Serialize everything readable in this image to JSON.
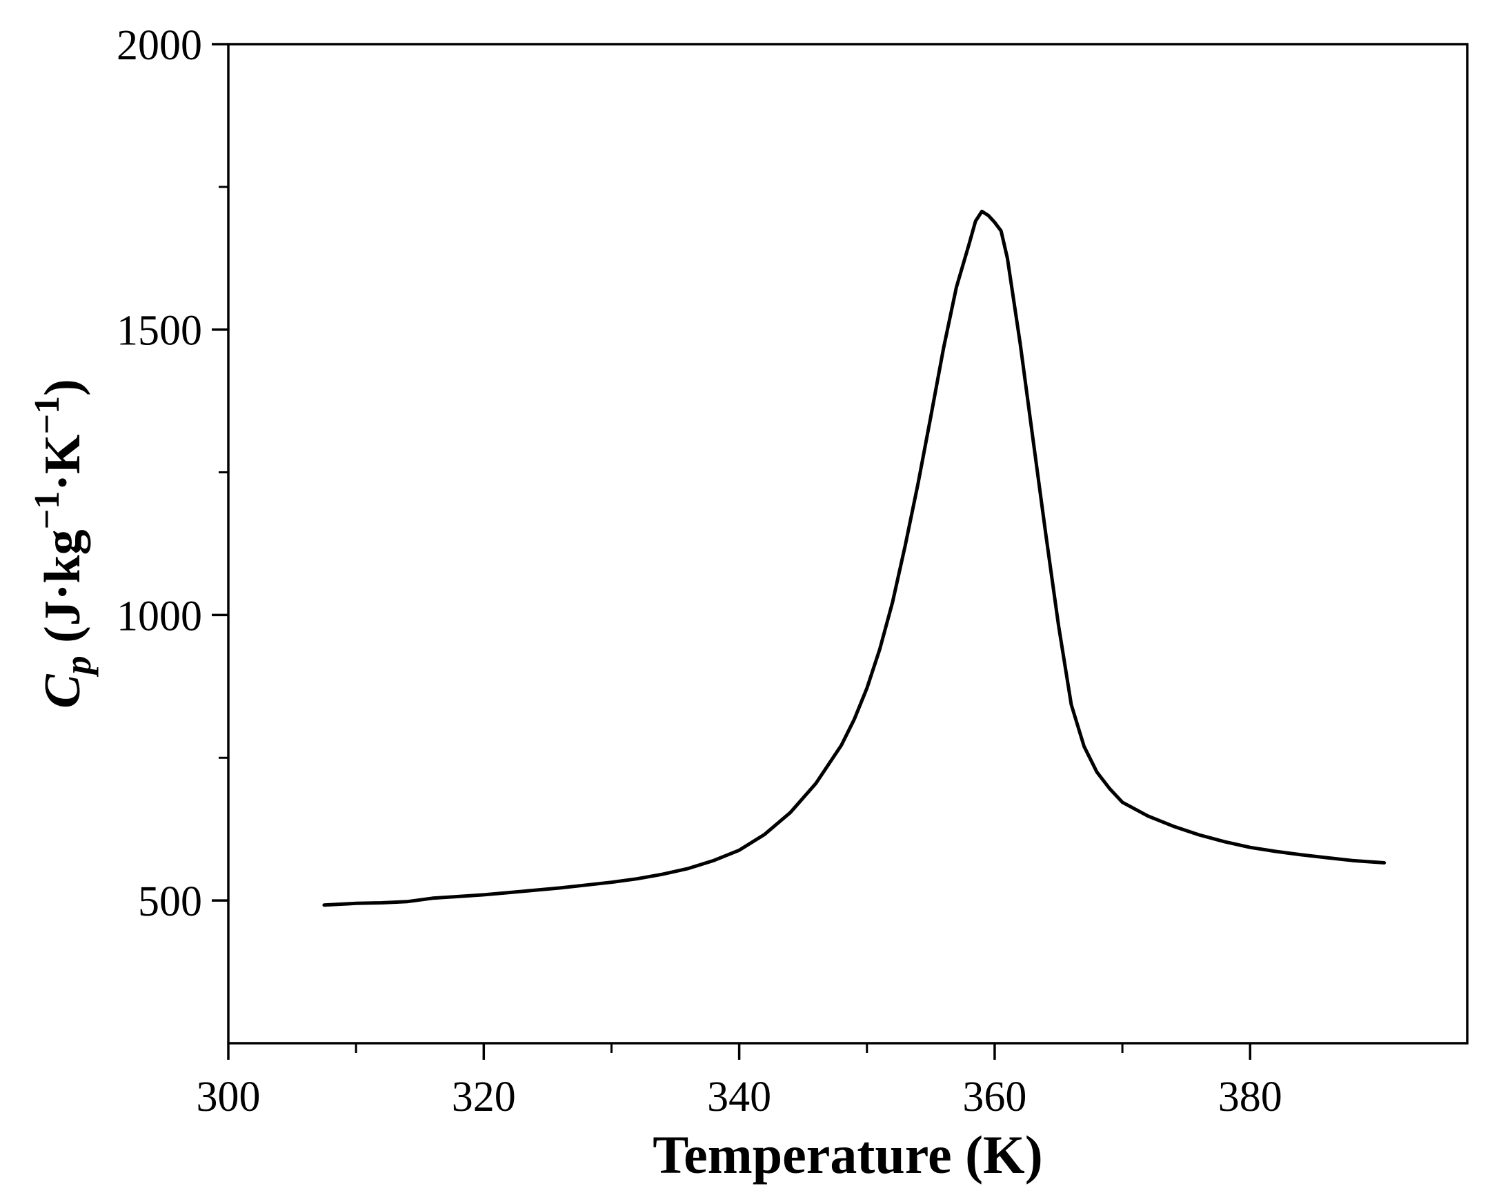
{
  "chart_data": {
    "type": "line",
    "title": "",
    "xlabel": "Temperature (K)",
    "ylabel": {
      "symbol": "C",
      "subscript": "p",
      "unit_prefix": " (J·kg",
      "exp1": "−1",
      "unit_mid": "·K",
      "exp2": "−1",
      "unit_suffix": ")"
    },
    "xlim": [
      300,
      397
    ],
    "ylim": [
      250,
      2000
    ],
    "x_major_ticks": [
      300,
      320,
      340,
      360,
      380
    ],
    "x_tick_labels": [
      "300",
      "320",
      "340",
      "360",
      "380"
    ],
    "x_minor_ticks": [
      310,
      330,
      350,
      370
    ],
    "y_major_ticks": [
      500,
      1000,
      1500,
      2000
    ],
    "y_tick_labels": [
      "500",
      "1000",
      "1500",
      "2000"
    ],
    "y_minor_ticks": [
      750,
      1250,
      1750
    ],
    "grid": false,
    "legend": "none",
    "colors": {
      "line": "#000000",
      "axes": "#000000"
    },
    "series": [
      {
        "x": [
          307.5,
          310,
          312,
          314,
          316,
          318,
          320,
          322,
          324,
          326,
          328,
          330,
          332,
          334,
          336,
          338,
          340,
          342,
          344,
          346,
          348,
          349,
          350,
          351,
          352,
          353,
          354,
          355,
          356,
          357,
          358,
          358.5,
          359,
          359.5,
          360,
          360.5,
          361,
          362,
          363,
          364,
          365,
          366,
          367,
          368,
          369,
          370,
          372,
          374,
          376,
          378,
          380,
          382,
          384,
          386,
          388,
          390.5
        ],
        "y": [
          492,
          495,
          496,
          498,
          504,
          507,
          510,
          514,
          518,
          522,
          527,
          532,
          538,
          546,
          556,
          570,
          588,
          616,
          654,
          705,
          772,
          817,
          872,
          940,
          1022,
          1122,
          1230,
          1348,
          1468,
          1574,
          1650,
          1690,
          1707,
          1700,
          1688,
          1673,
          1625,
          1475,
          1308,
          1142,
          982,
          843,
          770,
          725,
          696,
          672,
          648,
          630,
          615,
          603,
          593,
          586,
          580,
          575,
          570,
          566
        ]
      }
    ]
  }
}
